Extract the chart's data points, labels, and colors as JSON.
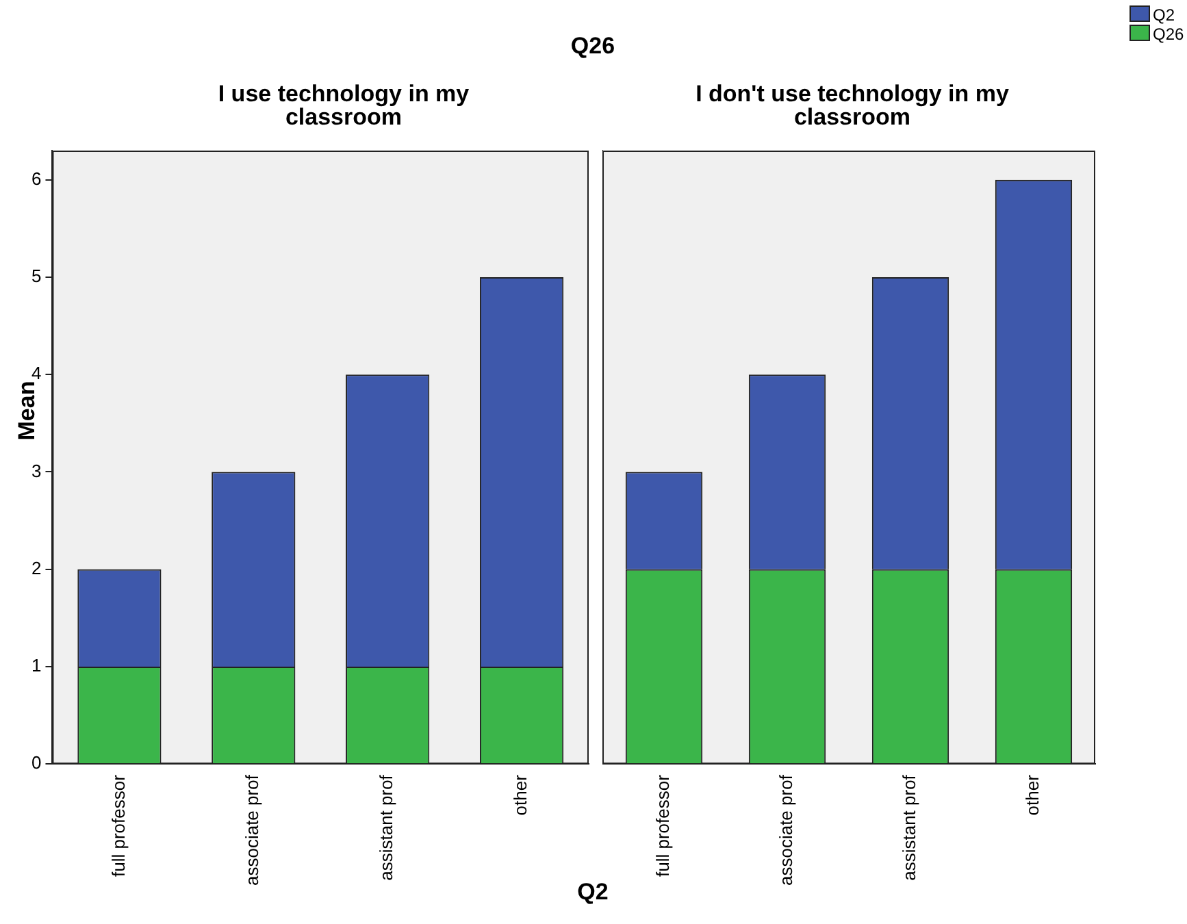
{
  "chart_data": [
    {
      "type": "bar",
      "title": "I use technology in my classroom",
      "annotations": [
        "Q26"
      ],
      "xlabel": "Q2",
      "ylabel": "Mean",
      "stacked": true,
      "categories": [
        "full professor",
        "associate prof",
        "assistant prof",
        "other"
      ],
      "series": [
        {
          "color": "#3bb54a",
          "values": [
            1,
            1,
            1,
            1
          ]
        },
        {
          "color": "#3e58ab",
          "values": [
            1,
            2,
            3,
            4
          ]
        }
      ],
      "ylim": [
        0,
        6.3
      ],
      "yticks": [
        0,
        1,
        2,
        3,
        4,
        5,
        6
      ],
      "grid": false,
      "legend": false
    },
    {
      "type": "bar",
      "title": "I don't use technology in my classroom",
      "stacked": true,
      "categories": [
        "full professor",
        "associate prof",
        "assistant prof",
        "other"
      ],
      "series": [
        {
          "name": "Q26",
          "color": "#3bb54a",
          "values": [
            2,
            2,
            2,
            2
          ]
        },
        {
          "name": "Q2",
          "color": "#3e58ab",
          "values": [
            1,
            2,
            3,
            4
          ]
        }
      ],
      "ylim": [
        0,
        6.3
      ],
      "yticks": [
        0,
        1,
        2,
        3,
        4,
        5,
        6
      ],
      "grid": false,
      "legend": "top right",
      "tick_labels": "x"
    }
  ]
}
